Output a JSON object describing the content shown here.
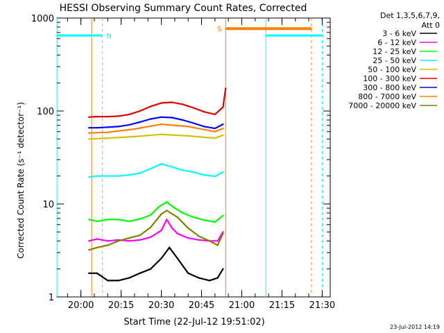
{
  "chart_data": {
    "type": "line",
    "title": "HESSI Observing Summary Count Rates, Corrected",
    "xlabel": "Start Time (22-Jul-12 19:51:02)",
    "ylabel": "Corrected Count Rate (s⁻¹ detector⁻¹)",
    "y_scale": "log",
    "ylim": [
      1,
      1000
    ],
    "xlim": [
      "19:51:02",
      "21:33:00"
    ],
    "x_ticks": [
      "20:00",
      "20:15",
      "20:30",
      "20:45",
      "21:00",
      "21:15",
      "21:30"
    ],
    "y_ticks": [
      "1",
      "10",
      "100",
      "1000"
    ],
    "legend_header": [
      "Det 1,3,5,6,7,9,",
      "Att 0"
    ],
    "date_stamp": "23-Jul-2012 14:19",
    "series": [
      {
        "name": "3 - 6 keV",
        "color": "#000000",
        "x": [
          "20:03",
          "20:06",
          "20:10",
          "20:14",
          "20:18",
          "20:22",
          "20:26",
          "20:30",
          "20:33",
          "20:36",
          "20:40",
          "20:44",
          "20:48",
          "20:51",
          "20:53"
        ],
        "y": [
          1.8,
          1.8,
          1.5,
          1.5,
          1.6,
          1.8,
          2.0,
          2.6,
          3.4,
          2.6,
          1.8,
          1.6,
          1.5,
          1.6,
          2.0
        ]
      },
      {
        "name": "6 - 12 keV",
        "color": "#ff00ff",
        "x": [
          "20:03",
          "20:06",
          "20:10",
          "20:14",
          "20:18",
          "20:22",
          "20:26",
          "20:30",
          "20:32",
          "20:34",
          "20:36",
          "20:40",
          "20:44",
          "20:48",
          "20:51",
          "20:53"
        ],
        "y": [
          4.0,
          4.2,
          4.0,
          4.1,
          4.0,
          4.1,
          4.4,
          5.2,
          6.8,
          5.5,
          4.8,
          4.3,
          4.1,
          4.0,
          4.0,
          5.0
        ]
      },
      {
        "name": "12 - 25 keV",
        "color": "#00ff00",
        "x": [
          "20:03",
          "20:06",
          "20:10",
          "20:14",
          "20:18",
          "20:22",
          "20:26",
          "20:29",
          "20:32",
          "20:35",
          "20:38",
          "20:42",
          "20:46",
          "20:50",
          "20:53"
        ],
        "y": [
          6.8,
          6.5,
          6.8,
          6.8,
          6.5,
          6.9,
          7.6,
          9.3,
          10.5,
          9.0,
          8.0,
          7.2,
          6.7,
          6.4,
          7.5
        ]
      },
      {
        "name": "25 - 50 keV",
        "color": "#00ffff",
        "x": [
          "20:03",
          "20:06",
          "20:10",
          "20:14",
          "20:18",
          "20:22",
          "20:26",
          "20:30",
          "20:34",
          "20:38",
          "20:42",
          "20:46",
          "20:50",
          "20:53"
        ],
        "y": [
          19.5,
          20,
          20,
          20,
          20.5,
          21.5,
          24,
          27,
          25,
          23,
          22,
          20.5,
          19.8,
          22
        ]
      },
      {
        "name": "50 - 100 keV",
        "color": "#d4c000",
        "x": [
          "20:03",
          "20:10",
          "20:20",
          "20:30",
          "20:40",
          "20:50",
          "20:53"
        ],
        "y": [
          50,
          51,
          53,
          56,
          54,
          51,
          55
        ]
      },
      {
        "name": "100 - 300 keV",
        "color": "#e00000",
        "x": [
          "20:03",
          "20:06",
          "20:10",
          "20:14",
          "20:18",
          "20:22",
          "20:26",
          "20:30",
          "20:34",
          "20:38",
          "20:42",
          "20:46",
          "20:50",
          "20:53",
          "20:54"
        ],
        "y": [
          86,
          87,
          87,
          88,
          92,
          100,
          112,
          122,
          124,
          118,
          108,
          98,
          92,
          110,
          175
        ]
      },
      {
        "name": "300 - 800 keV",
        "color": "#0000ff",
        "x": [
          "20:03",
          "20:06",
          "20:10",
          "20:14",
          "20:18",
          "20:22",
          "20:26",
          "20:30",
          "20:34",
          "20:38",
          "20:42",
          "20:46",
          "20:50",
          "20:53"
        ],
        "y": [
          66,
          66,
          67,
          68,
          71,
          76,
          82,
          86,
          85,
          80,
          74,
          68,
          65,
          72
        ]
      },
      {
        "name": "800 - 7000 keV",
        "color": "#ff8000",
        "x": [
          "20:03",
          "20:10",
          "20:20",
          "20:30",
          "20:40",
          "20:50",
          "20:53"
        ],
        "y": [
          58,
          59,
          64,
          72,
          68,
          60,
          65
        ]
      },
      {
        "name": "7000 - 20000 keV",
        "color": "#808000",
        "x": [
          "20:03",
          "20:06",
          "20:10",
          "20:14",
          "20:18",
          "20:22",
          "20:26",
          "20:30",
          "20:32",
          "20:36",
          "20:40",
          "20:44",
          "20:48",
          "20:51",
          "20:53"
        ],
        "y": [
          3.2,
          3.4,
          3.6,
          4.0,
          4.3,
          4.6,
          5.6,
          7.8,
          8.5,
          7.2,
          5.5,
          4.5,
          4.0,
          3.6,
          4.8
        ]
      }
    ],
    "annotations": [
      {
        "label": "N",
        "color": "#00ffff"
      },
      {
        "label": "S",
        "color": "#ff8000"
      }
    ]
  }
}
